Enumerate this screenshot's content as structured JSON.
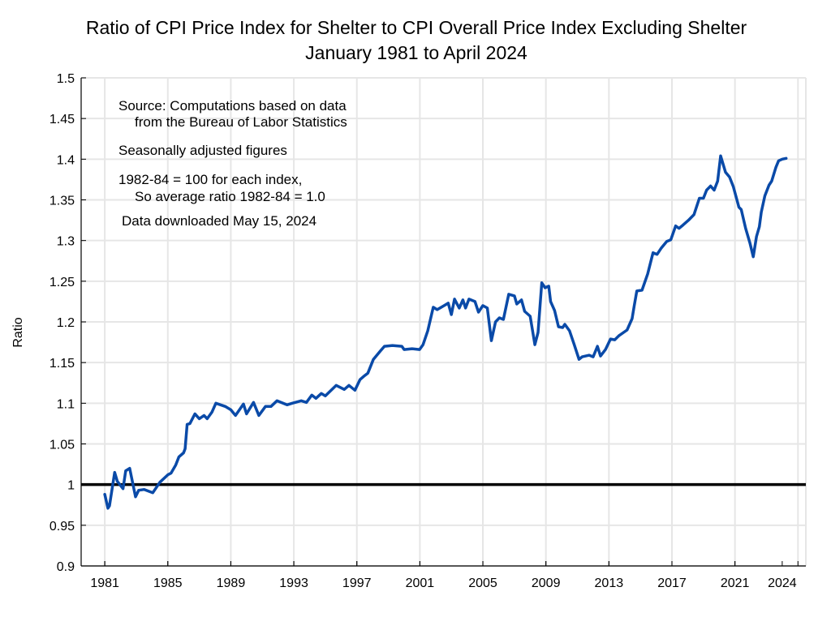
{
  "chart_data": {
    "type": "line",
    "title": "Ratio of CPI Price Index for Shelter to CPI Overall Price Index Excluding Shelter",
    "subtitle": "January 1981 to April 2024",
    "xlabel": "",
    "ylabel": "Ratio",
    "xlim": [
      1979.5,
      2025.5
    ],
    "ylim": [
      0.9,
      1.5
    ],
    "x_ticks": [
      1981,
      1985,
      1989,
      1993,
      1997,
      2001,
      2005,
      2009,
      2013,
      2017,
      2021,
      2024
    ],
    "x_gridlines": [
      1981,
      1985,
      1989,
      1993,
      1997,
      2001,
      2005,
      2009,
      2013,
      2017,
      2021,
      2025
    ],
    "y_ticks": [
      "0.9",
      "0.95",
      "1",
      "1.05",
      "1.1",
      "1.15",
      "1.2",
      "1.25",
      "1.3",
      "1.35",
      "1.4",
      "1.45",
      "1.5"
    ],
    "grid": true,
    "reference_line": {
      "y": 1.0,
      "color": "#000000"
    },
    "line_color": "#0a4aa8",
    "annotations": [
      "Source:  Computations based on data",
      "from the Bureau of Labor Statistics",
      "Seasonally adjusted figures",
      "1982-84 = 100 for each index,",
      "So average ratio 1982-84 = 1.0",
      "Data downloaded May 15, 2024"
    ],
    "series": [
      {
        "x": [
          1981.0,
          1981.2,
          1981.3,
          1981.63,
          1981.8,
          1982.16,
          1982.33,
          1982.58,
          1982.95,
          1983.15,
          1983.5,
          1984.05,
          1984.5,
          1985.0,
          1985.2,
          1985.5,
          1985.7,
          1986.0,
          1986.1,
          1986.23,
          1986.4,
          1986.72,
          1987.0,
          1987.3,
          1987.5,
          1987.8,
          1988.05,
          1988.65,
          1989.0,
          1989.3,
          1989.8,
          1990.0,
          1990.44,
          1990.78,
          1991.2,
          1991.55,
          1991.93,
          1992.57,
          1992.9,
          1993.47,
          1993.8,
          1994.14,
          1994.4,
          1994.74,
          1995.0,
          1995.69,
          1996.2,
          1996.5,
          1996.88,
          1997.2,
          1997.5,
          1997.7,
          1998.05,
          1998.48,
          1998.75,
          1999.26,
          1999.86,
          2000.0,
          2000.5,
          2000.98,
          2001.2,
          2001.5,
          2001.85,
          2002.1,
          2002.54,
          2002.8,
          2003.0,
          2003.2,
          2003.5,
          2003.73,
          2003.9,
          2004.12,
          2004.5,
          2004.72,
          2005.0,
          2005.28,
          2005.54,
          2005.8,
          2006.05,
          2006.3,
          2006.64,
          2007.0,
          2007.15,
          2007.45,
          2007.65,
          2008.0,
          2008.3,
          2008.5,
          2008.74,
          2008.95,
          2009.18,
          2009.3,
          2009.55,
          2009.8,
          2010.06,
          2010.2,
          2010.5,
          2010.8,
          2011.1,
          2011.3,
          2011.75,
          2012.0,
          2012.27,
          2012.47,
          2012.78,
          2013.1,
          2013.37,
          2013.63,
          2014.15,
          2014.47,
          2014.6,
          2014.77,
          2015.1,
          2015.46,
          2015.8,
          2016.06,
          2016.33,
          2016.67,
          2016.93,
          2017.24,
          2017.45,
          2017.7,
          2018.05,
          2018.4,
          2018.74,
          2019.0,
          2019.2,
          2019.45,
          2019.68,
          2019.9,
          2020.09,
          2020.4,
          2020.66,
          2020.9,
          2021.25,
          2021.4,
          2021.68,
          2021.95,
          2022.16,
          2022.37,
          2022.55,
          2022.67,
          2022.9,
          2023.16,
          2023.33,
          2023.6,
          2023.77,
          2024.0,
          2024.25
        ],
        "y": [
          0.988,
          0.971,
          0.974,
          1.015,
          1.004,
          0.995,
          1.017,
          1.02,
          0.985,
          0.993,
          0.994,
          0.99,
          1.003,
          1.012,
          1.014,
          1.024,
          1.034,
          1.039,
          1.044,
          1.074,
          1.075,
          1.087,
          1.081,
          1.085,
          1.081,
          1.089,
          1.1,
          1.096,
          1.092,
          1.085,
          1.099,
          1.087,
          1.101,
          1.085,
          1.096,
          1.096,
          1.103,
          1.098,
          1.1,
          1.103,
          1.101,
          1.11,
          1.106,
          1.112,
          1.109,
          1.122,
          1.117,
          1.122,
          1.116,
          1.129,
          1.134,
          1.137,
          1.154,
          1.164,
          1.17,
          1.171,
          1.17,
          1.166,
          1.167,
          1.166,
          1.172,
          1.189,
          1.218,
          1.215,
          1.22,
          1.223,
          1.209,
          1.228,
          1.217,
          1.227,
          1.217,
          1.228,
          1.225,
          1.212,
          1.22,
          1.217,
          1.177,
          1.2,
          1.205,
          1.203,
          1.234,
          1.232,
          1.222,
          1.227,
          1.213,
          1.207,
          1.172,
          1.187,
          1.248,
          1.242,
          1.244,
          1.225,
          1.214,
          1.194,
          1.193,
          1.197,
          1.189,
          1.172,
          1.154,
          1.157,
          1.159,
          1.157,
          1.17,
          1.158,
          1.166,
          1.179,
          1.178,
          1.183,
          1.19,
          1.204,
          1.219,
          1.238,
          1.239,
          1.259,
          1.285,
          1.283,
          1.291,
          1.299,
          1.301,
          1.318,
          1.315,
          1.319,
          1.325,
          1.332,
          1.352,
          1.352,
          1.362,
          1.367,
          1.362,
          1.373,
          1.404,
          1.384,
          1.378,
          1.366,
          1.341,
          1.338,
          1.315,
          1.297,
          1.28,
          1.305,
          1.317,
          1.335,
          1.355,
          1.368,
          1.373,
          1.39,
          1.398,
          1.4,
          1.401
        ]
      }
    ]
  }
}
